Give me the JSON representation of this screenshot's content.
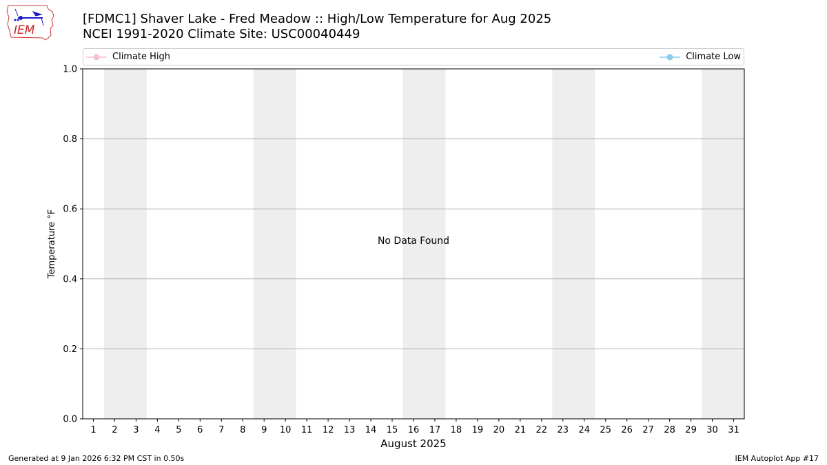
{
  "header": {
    "title_line1": "[FDMC1] Shaver Lake - Fred Meadow :: High/Low Temperature for Aug 2025",
    "title_line2": "NCEI 1991-2020 Climate Site: USC00040449"
  },
  "logo": {
    "text": "IEM",
    "icon": "iem-iowa-logo"
  },
  "legend": [
    {
      "label": "Climate High",
      "color": "#f4c2cd"
    },
    {
      "label": "Climate Low",
      "color": "#87ceeb"
    }
  ],
  "footer": {
    "left": "Generated at 9 Jan 2026 6:32 PM CST in 0.50s",
    "right": "IEM Autoplot App #17"
  },
  "chart_data": {
    "type": "line",
    "xlabel": "August 2025",
    "ylabel": "Temperature °F",
    "x_ticks": [
      "1",
      "2",
      "3",
      "4",
      "5",
      "6",
      "7",
      "8",
      "9",
      "10",
      "11",
      "12",
      "13",
      "14",
      "15",
      "16",
      "17",
      "18",
      "19",
      "20",
      "21",
      "22",
      "23",
      "24",
      "25",
      "26",
      "27",
      "28",
      "29",
      "30",
      "31"
    ],
    "xlim": [
      0.5,
      31.5
    ],
    "ylim": [
      0,
      1
    ],
    "y_ticks": [
      "0.0",
      "0.2",
      "0.4",
      "0.6",
      "0.8",
      "1.0"
    ],
    "y_tick_values": [
      0,
      0.2,
      0.4,
      0.6,
      0.8,
      1.0
    ],
    "weekend_shading": [
      [
        2,
        3
      ],
      [
        9,
        10
      ],
      [
        16,
        17
      ],
      [
        23,
        24
      ],
      [
        30,
        31
      ]
    ],
    "shading_color": "#eeeeee",
    "grid": "horizontal",
    "annotation": "No Data Found",
    "series": [
      {
        "name": "Climate High",
        "values": []
      },
      {
        "name": "Climate Low",
        "values": []
      }
    ]
  }
}
